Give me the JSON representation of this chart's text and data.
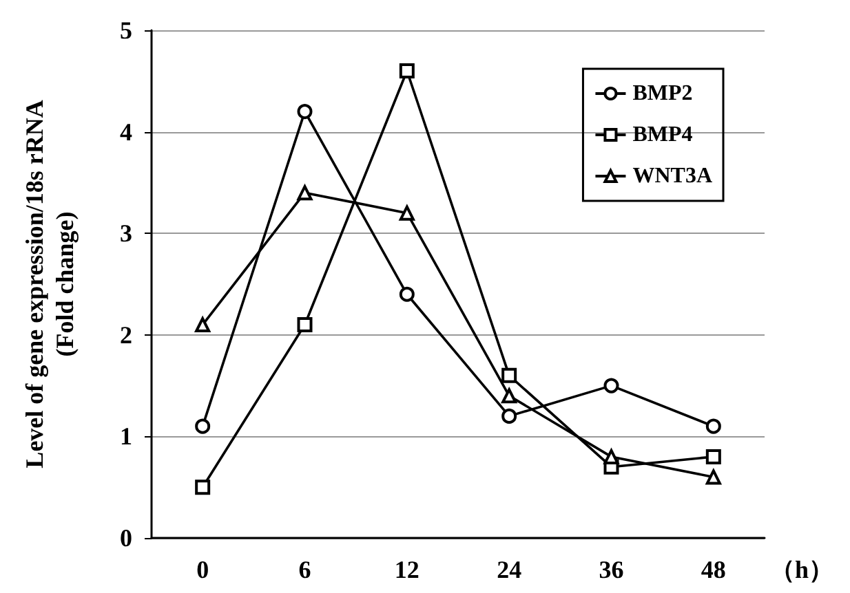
{
  "chart_data": {
    "type": "line",
    "ylabel": "Level of gene expression/18s rRNA\n(Fold change)",
    "xlabel": "（h）",
    "categories": [
      "0",
      "6",
      "12",
      "24",
      "36",
      "48"
    ],
    "series": [
      {
        "name": "BMP2",
        "color": "#000000",
        "marker": "circle",
        "values": [
          1.1,
          4.2,
          2.4,
          1.2,
          1.5,
          1.1
        ]
      },
      {
        "name": "BMP4",
        "color": "#000000",
        "marker": "square",
        "values": [
          0.5,
          2.1,
          4.6,
          1.6,
          0.7,
          0.8
        ]
      },
      {
        "name": "WNT3A",
        "color": "#000000",
        "marker": "triangle",
        "values": [
          2.1,
          3.4,
          3.2,
          1.4,
          0.8,
          0.6
        ]
      }
    ],
    "ylim": [
      0,
      5
    ],
    "yticks": [
      0,
      1,
      2,
      3,
      4,
      5
    ],
    "grid": "y",
    "legend": "top right",
    "line_style": "solid"
  }
}
